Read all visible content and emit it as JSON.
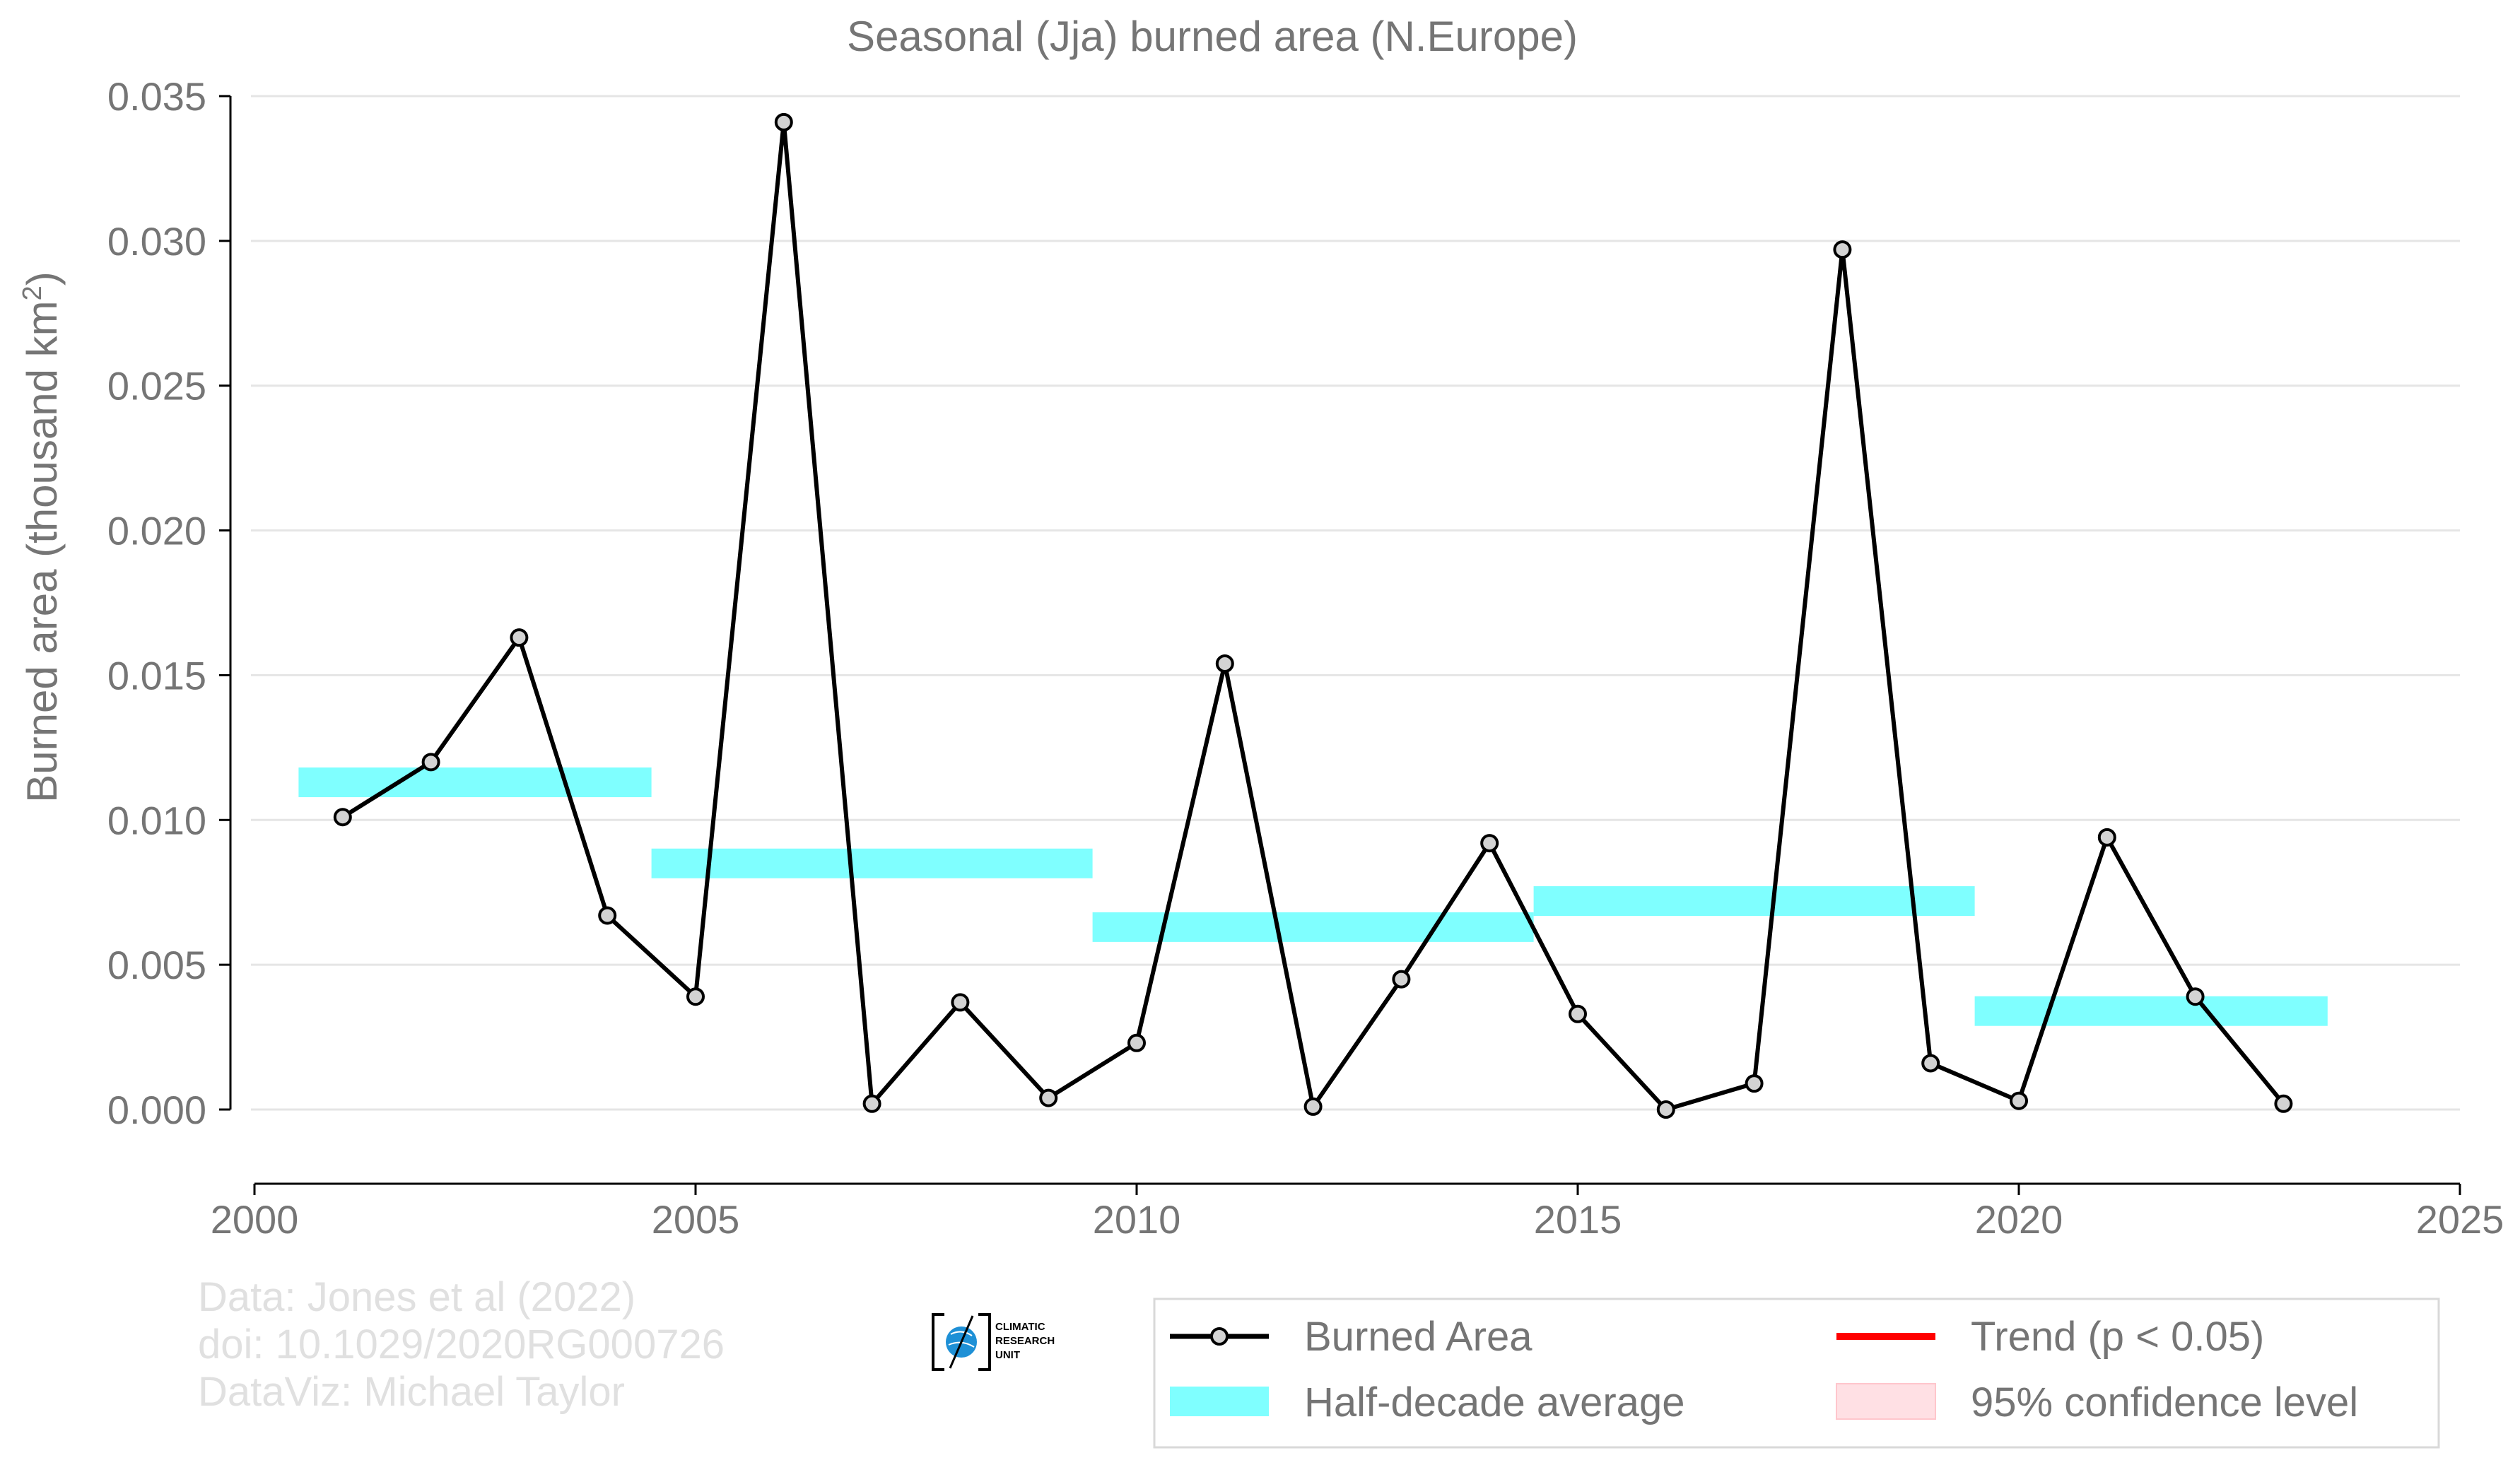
{
  "chart_data": {
    "type": "line",
    "title": "Seasonal (Jja) burned area (N.Europe)",
    "xlabel": "",
    "ylabel": "Burned area (thousand km",
    "ylabel_sup": "2",
    "ylabel_close": ")",
    "xlim": [
      2000,
      2025
    ],
    "ylim": [
      -0.0025,
      0.035
    ],
    "xticks": [
      2000,
      2005,
      2010,
      2015,
      2020,
      2025
    ],
    "yticks": [
      0.0,
      0.005,
      0.01,
      0.015,
      0.02,
      0.025,
      0.03,
      0.035
    ],
    "ytick_labels": [
      "0.000",
      "0.005",
      "0.010",
      "0.015",
      "0.020",
      "0.025",
      "0.030",
      "0.035"
    ],
    "grid": "horizontal",
    "legend_position": "bottom-right",
    "series": [
      {
        "name": "Burned Area",
        "color": "#000000",
        "marker_fill": "#d3d3d3",
        "x": [
          2001,
          2002,
          2003,
          2004,
          2005,
          2006,
          2007,
          2008,
          2009,
          2010,
          2011,
          2012,
          2013,
          2014,
          2015,
          2016,
          2017,
          2018,
          2019,
          2020,
          2021,
          2022,
          2023
        ],
        "y": [
          0.0101,
          0.012,
          0.0163,
          0.0067,
          0.0039,
          0.0341,
          0.0002,
          0.0037,
          0.0004,
          0.0023,
          0.0154,
          0.0001,
          0.0045,
          0.0092,
          0.0033,
          0.0,
          0.0009,
          0.0297,
          0.0016,
          0.0003,
          0.0094,
          0.0039,
          0.0002
        ]
      },
      {
        "name": "Half-decade average",
        "color": "#7fffff",
        "segments": [
          {
            "x0": 2000.5,
            "x1": 2004.5,
            "y": 0.0113
          },
          {
            "x0": 2004.5,
            "x1": 2009.5,
            "y": 0.0085
          },
          {
            "x0": 2009.5,
            "x1": 2014.5,
            "y": 0.0063
          },
          {
            "x0": 2014.5,
            "x1": 2019.5,
            "y": 0.0072
          },
          {
            "x0": 2019.5,
            "x1": 2023.5,
            "y": 0.0034
          }
        ]
      }
    ],
    "legend": [
      {
        "label": "Burned Area",
        "kind": "line-marker",
        "color": "#000000"
      },
      {
        "label": "Half-decade average",
        "kind": "band",
        "color": "#7fffff"
      },
      {
        "label": "Trend (p < 0.05)",
        "kind": "line",
        "color": "#ff0000"
      },
      {
        "label": "95% confidence level",
        "kind": "box",
        "color": "#ffe0e4"
      }
    ]
  },
  "credits": {
    "line1": "Data: Jones et al (2022)",
    "line2": "doi: 10.1029/2020RG000726",
    "line3": "DataViz: Michael Taylor"
  },
  "logo": {
    "line1": "CLIMATIC",
    "line2": "RESEARCH",
    "line3": "UNIT",
    "color": "#1e90d6"
  }
}
